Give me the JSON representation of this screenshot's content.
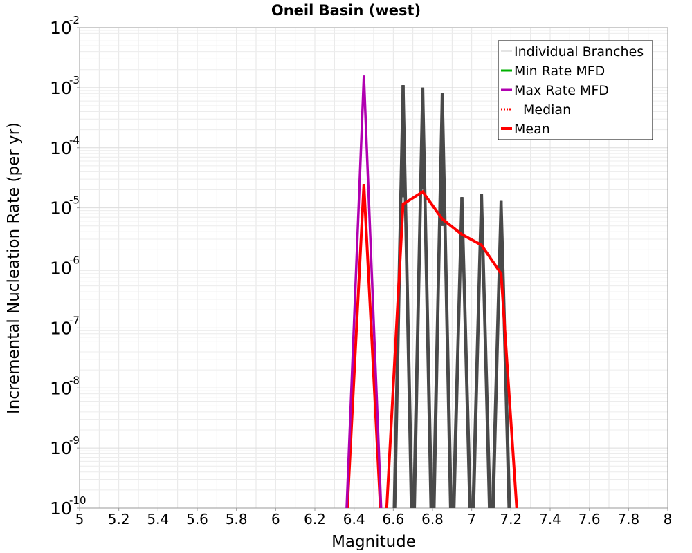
{
  "chart_data": {
    "type": "line",
    "title": "Oneil Basin (west)",
    "xlabel": "Magnitude",
    "ylabel": "Incremental Nucleation Rate (per yr)",
    "xlim": [
      5,
      8
    ],
    "ylim_exp": [
      -10,
      -2
    ],
    "y_scale": "log",
    "grid": true,
    "legend_position": "top-right",
    "x_ticks": [
      "5",
      "5.2",
      "5.4",
      "5.6",
      "5.8",
      "6",
      "6.2",
      "6.4",
      "6.6",
      "6.8",
      "7",
      "7.2",
      "7.4",
      "7.6",
      "7.8",
      "8"
    ],
    "y_tick_exps": [
      "-10",
      "-9",
      "-8",
      "-7",
      "-6",
      "-5",
      "-4",
      "-3",
      "-2"
    ],
    "y_tick_base": "10",
    "legend": [
      {
        "label": "Individual Branches",
        "color": "#c8c8c8",
        "style": "solid-thin"
      },
      {
        "label": "Min Rate MFD",
        "color": "#00b000",
        "style": "solid"
      },
      {
        "label": "Max Rate MFD",
        "color": "#b000b0",
        "style": "solid"
      },
      {
        "label": "Median",
        "color": "#ff0000",
        "style": "dotted"
      },
      {
        "label": "Mean",
        "color": "#ff0000",
        "style": "solid-thick"
      }
    ],
    "series": [
      {
        "name": "Mean",
        "color": "#ff0000",
        "x": [
          6.35,
          6.45,
          6.55,
          6.65,
          6.75,
          6.85,
          6.95,
          7.05,
          7.15,
          7.25
        ],
        "y": [
          1e-11,
          2.5e-05,
          1e-11,
          1.15e-05,
          1.85e-05,
          6.5e-06,
          3.6e-06,
          2.4e-06,
          8e-07,
          1e-11
        ]
      },
      {
        "name": "Max Rate MFD",
        "color": "#b000b0",
        "x": [
          6.35,
          6.45,
          6.55
        ],
        "y": [
          1e-11,
          0.0016,
          1e-11
        ]
      }
    ],
    "branch_peaks": [
      {
        "x": 6.65,
        "y_min": 1.5e-05,
        "y_max": 0.0011
      },
      {
        "x": 6.75,
        "y_min": 2e-05,
        "y_max": 0.001
      },
      {
        "x": 6.85,
        "y_min": 5e-06,
        "y_max": 0.0008
      },
      {
        "x": 6.95,
        "y_min": 3e-06,
        "y_max": 1.5e-05
      },
      {
        "x": 7.05,
        "y_min": 2e-06,
        "y_max": 1.7e-05
      },
      {
        "x": 7.15,
        "y_min": 7e-07,
        "y_max": 1.3e-05
      }
    ],
    "branch_color": "#4a4a4a"
  }
}
